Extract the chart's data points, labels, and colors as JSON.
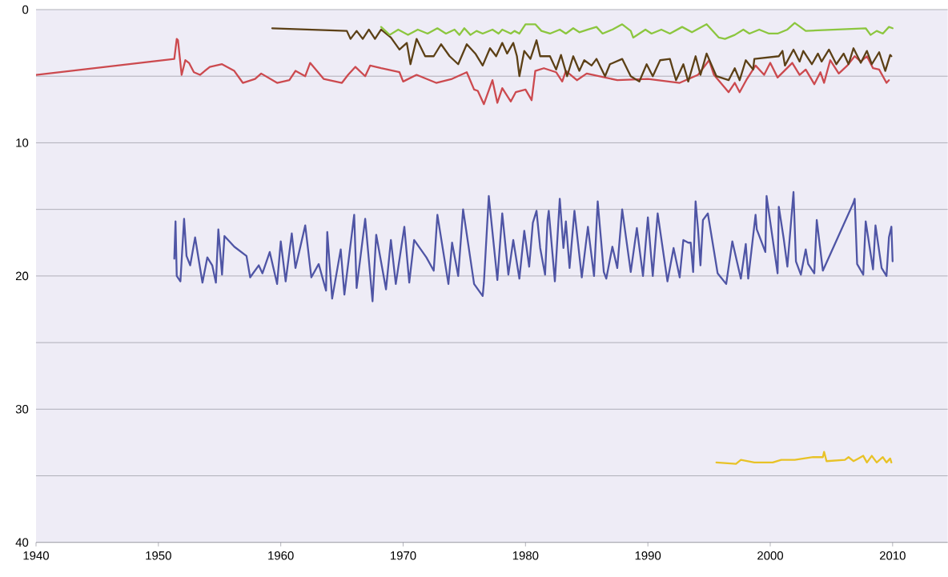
{
  "chart_data": {
    "type": "line",
    "xlim": [
      1940,
      2014.5
    ],
    "ylim": [
      40,
      0
    ],
    "xticks": [
      1940,
      1950,
      1960,
      1970,
      1980,
      1990,
      2000,
      2010
    ],
    "yticks": [
      0,
      {
        "value": 5,
        "label": null
      },
      10,
      {
        "value": 15,
        "label": null
      },
      20,
      {
        "value": 25,
        "label": null
      },
      30,
      {
        "value": 35,
        "label": null
      },
      40
    ],
    "grid": "y",
    "series": [
      {
        "color": "#cc4a4f",
        "x": [
          1940,
          1951.3,
          1951.5,
          1951.6,
          1951.9,
          1952.2,
          1952.5,
          1952.9,
          1953.4,
          1954.2,
          1955.2,
          1956.2,
          1956.9,
          1957.9,
          1958.4,
          1959.7,
          1960.7,
          1961.2,
          1962.0,
          1962.4,
          1963.5,
          1965.0,
          1965.5,
          1966.1,
          1966.9,
          1967.3,
          1968.2,
          1969.7,
          1970.0,
          1971.1,
          1972.7,
          1974.0,
          1975.2,
          1975.8,
          1976.1,
          1976.6,
          1977.3,
          1977.7,
          1978.1,
          1978.8,
          1979.2,
          1980.0,
          1980.5,
          1980.8,
          1981.5,
          1982.5,
          1983.0,
          1983.3,
          1984.2,
          1985.0,
          1987.5,
          1990.0,
          1992.6,
          1994.1,
          1995.0,
          1995.4,
          1996.6,
          1997.1,
          1997.5,
          1998.1,
          1998.8,
          1999.5,
          2000.0,
          2000.6,
          2001.8,
          2002.4,
          2002.9,
          2003.6,
          2004.1,
          2004.4,
          2004.9,
          2005.6,
          2006.3,
          2006.9,
          2007.4,
          2007.9,
          2008.4,
          2008.9,
          2009.5,
          2009.7
        ],
        "values": [
          4.9,
          3.7,
          2.2,
          2.3,
          4.9,
          3.8,
          4.0,
          4.7,
          4.9,
          4.3,
          4.1,
          4.6,
          5.5,
          5.2,
          4.8,
          5.5,
          5.3,
          4.6,
          5.0,
          4.0,
          5.2,
          5.5,
          4.9,
          4.3,
          5.0,
          4.2,
          4.4,
          4.7,
          5.4,
          4.9,
          5.5,
          5.2,
          4.7,
          6.0,
          6.1,
          7.1,
          5.3,
          7.0,
          5.9,
          6.9,
          6.2,
          6.0,
          6.8,
          4.6,
          4.4,
          4.7,
          5.4,
          4.6,
          5.3,
          4.8,
          5.3,
          5.2,
          5.5,
          4.9,
          3.8,
          4.9,
          6.2,
          5.5,
          6.2,
          5.2,
          4.2,
          4.9,
          4.0,
          5.1,
          4.0,
          4.9,
          4.5,
          5.6,
          4.7,
          5.5,
          3.8,
          4.8,
          4.2,
          3.5,
          3.9,
          3.5,
          4.4,
          4.5,
          5.5,
          5.3
        ]
      },
      {
        "color": "#5c4016",
        "x": [
          1959.3,
          1965.4,
          1965.7,
          1966.2,
          1966.7,
          1967.2,
          1967.7,
          1968.2,
          1969.0,
          1969.7,
          1970.3,
          1970.6,
          1971.1,
          1971.8,
          1972.5,
          1973.1,
          1973.8,
          1974.5,
          1975.2,
          1975.9,
          1976.5,
          1977.1,
          1977.6,
          1978.1,
          1978.5,
          1979.0,
          1979.3,
          1979.5,
          1979.9,
          1980.4,
          1980.9,
          1981.2,
          1982.0,
          1982.5,
          1982.9,
          1983.4,
          1983.9,
          1984.4,
          1984.8,
          1985.4,
          1985.8,
          1986.5,
          1986.9,
          1987.9,
          1988.6,
          1989.3,
          1989.9,
          1990.4,
          1991.0,
          1991.8,
          1992.3,
          1992.9,
          1993.3,
          1993.9,
          1994.3,
          1994.8,
          1995.6,
          1996.6,
          1997.1,
          1997.5,
          1998.0,
          1998.6,
          1998.7,
          2000.7,
          2001.0,
          2001.2,
          2001.9,
          2002.4,
          2002.7,
          2003.4,
          2003.9,
          2004.2,
          2004.8,
          2005.4,
          2006.0,
          2006.4,
          2006.8,
          2007.4,
          2007.9,
          2008.3,
          2008.9,
          2009.4,
          2009.8,
          2009.9
        ],
        "values": [
          1.4,
          1.6,
          2.2,
          1.6,
          2.2,
          1.5,
          2.2,
          1.5,
          2.1,
          3.0,
          2.5,
          4.1,
          2.2,
          3.5,
          3.5,
          2.6,
          3.5,
          4.1,
          2.6,
          3.3,
          4.2,
          2.9,
          3.5,
          2.5,
          3.3,
          2.5,
          3.5,
          5.0,
          3.1,
          3.7,
          2.3,
          3.5,
          3.5,
          4.5,
          3.4,
          5.0,
          3.5,
          4.6,
          3.8,
          4.2,
          3.7,
          5.0,
          4.1,
          3.7,
          5.0,
          5.4,
          4.1,
          5.0,
          3.8,
          3.7,
          5.3,
          4.1,
          5.4,
          3.5,
          4.9,
          3.3,
          5.0,
          5.3,
          4.4,
          5.3,
          3.8,
          4.5,
          3.7,
          3.5,
          3.1,
          4.2,
          3.0,
          3.9,
          3.1,
          4.1,
          3.3,
          3.9,
          3.0,
          4.1,
          3.3,
          4.1,
          2.9,
          4.0,
          3.1,
          4.1,
          3.2,
          4.6,
          3.4,
          3.5
        ]
      },
      {
        "color": "#8cc63f",
        "x": [
          1968.2,
          1968.9,
          1969.6,
          1970.4,
          1971.2,
          1972.0,
          1972.8,
          1973.5,
          1974.2,
          1974.6,
          1975.0,
          1975.5,
          1976.0,
          1976.5,
          1977.3,
          1977.8,
          1978.1,
          1978.8,
          1979.1,
          1979.5,
          1980.0,
          1980.8,
          1981.3,
          1982.0,
          1982.8,
          1983.3,
          1983.9,
          1984.4,
          1985.1,
          1985.8,
          1986.3,
          1987.1,
          1987.9,
          1988.6,
          1988.8,
          1989.8,
          1990.3,
          1991.1,
          1991.8,
          1992.8,
          1993.6,
          1994.8,
          1995.8,
          1996.3,
          1997.1,
          1997.8,
          1998.3,
          1999.1,
          1999.9,
          2000.6,
          2001.4,
          2002.0,
          2002.9,
          2007.8,
          2008.2,
          2008.7,
          2009.2,
          2009.7,
          2010.0
        ],
        "values": [
          1.3,
          1.9,
          1.5,
          1.9,
          1.5,
          1.8,
          1.4,
          1.8,
          1.5,
          1.9,
          1.4,
          1.9,
          1.6,
          1.8,
          1.5,
          1.8,
          1.5,
          1.8,
          1.6,
          1.8,
          1.1,
          1.1,
          1.6,
          1.8,
          1.5,
          1.8,
          1.4,
          1.7,
          1.5,
          1.3,
          1.8,
          1.5,
          1.1,
          1.6,
          2.1,
          1.5,
          1.8,
          1.5,
          1.8,
          1.3,
          1.7,
          1.1,
          2.1,
          2.2,
          1.9,
          1.5,
          1.8,
          1.5,
          1.8,
          1.8,
          1.5,
          1.0,
          1.6,
          1.4,
          1.9,
          1.6,
          1.8,
          1.3,
          1.4
        ]
      },
      {
        "color": "#4f55a5",
        "x": [
          1951.3,
          1951.4,
          1951.5,
          1951.8,
          1952.1,
          1952.3,
          1952.6,
          1953.0,
          1953.6,
          1954.0,
          1954.4,
          1954.7,
          1954.9,
          1955.2,
          1955.4,
          1956.2,
          1957.2,
          1957.5,
          1958.2,
          1958.5,
          1959.1,
          1959.7,
          1960.0,
          1960.4,
          1960.9,
          1961.2,
          1962.0,
          1962.5,
          1963.1,
          1963.7,
          1963.8,
          1964.2,
          1964.9,
          1965.2,
          1966.0,
          1966.2,
          1966.9,
          1967.5,
          1967.8,
          1968.6,
          1969.0,
          1969.4,
          1970.1,
          1970.5,
          1970.9,
          1971.9,
          1972.5,
          1972.8,
          1973.7,
          1974.0,
          1974.5,
          1974.9,
          1975.8,
          1976.5,
          1976.6,
          1977.0,
          1977.7,
          1978.1,
          1978.6,
          1979.0,
          1979.5,
          1979.9,
          1980.3,
          1980.6,
          1980.9,
          1981.2,
          1981.6,
          1981.8,
          1981.9,
          1982.4,
          1982.8,
          1983.1,
          1983.3,
          1983.6,
          1984.0,
          1984.6,
          1985.1,
          1985.6,
          1985.9,
          1986.4,
          1986.6,
          1987.1,
          1987.5,
          1987.9,
          1988.6,
          1989.1,
          1989.6,
          1990.0,
          1990.4,
          1990.8,
          1991.6,
          1992.1,
          1992.6,
          1992.9,
          1993.3,
          1993.5,
          1993.7,
          1993.9,
          1994.1,
          1994.3,
          1994.5,
          1994.9,
          1995.7,
          1996.4,
          1996.9,
          1997.6,
          1998.0,
          1998.2,
          1998.8,
          1998.9,
          1999.6,
          1999.7,
          2000.6,
          2000.7,
          2001.1,
          2001.4,
          2001.9,
          2002.1,
          2002.5,
          2002.9,
          2003.1,
          2003.6,
          2003.8,
          2004.3,
          2006.8,
          2006.9,
          2007.1,
          2007.6,
          2007.8,
          2008.4,
          2008.6,
          2009.1,
          2009.5,
          2009.7,
          2009.9,
          2010.0
        ],
        "values": [
          18.7,
          15.9,
          20.0,
          20.4,
          15.7,
          18.5,
          19.2,
          17.1,
          20.5,
          18.6,
          19.2,
          20.5,
          16.5,
          19.9,
          17.0,
          17.8,
          18.5,
          20.1,
          19.2,
          19.8,
          18.2,
          20.6,
          17.4,
          20.4,
          16.8,
          19.4,
          16.2,
          20.1,
          19.1,
          21.1,
          16.7,
          21.7,
          18.0,
          21.4,
          15.4,
          20.9,
          15.7,
          21.9,
          16.9,
          21.0,
          17.3,
          20.6,
          16.3,
          20.5,
          17.3,
          18.6,
          19.6,
          15.4,
          20.6,
          17.5,
          20.0,
          15.0,
          20.6,
          21.5,
          20.5,
          14.0,
          20.3,
          15.3,
          19.9,
          17.3,
          20.2,
          16.6,
          19.3,
          16.0,
          15.1,
          17.9,
          19.9,
          15.8,
          15.1,
          20.4,
          14.2,
          17.9,
          15.9,
          19.4,
          15.1,
          20.1,
          16.3,
          20.0,
          14.4,
          19.7,
          20.2,
          17.8,
          19.4,
          15.0,
          19.7,
          16.4,
          20.0,
          15.6,
          20.0,
          15.3,
          20.4,
          17.9,
          20.1,
          17.3,
          17.5,
          17.5,
          19.7,
          14.4,
          16.5,
          19.2,
          15.8,
          15.3,
          19.8,
          20.6,
          17.4,
          20.2,
          17.6,
          20.2,
          15.4,
          16.5,
          18.2,
          14.0,
          19.8,
          14.8,
          17.2,
          19.3,
          13.7,
          18.9,
          19.9,
          18.0,
          19.1,
          19.8,
          15.8,
          19.6,
          14.5,
          14.2,
          19.1,
          19.9,
          15.9,
          19.5,
          16.2,
          19.4,
          20.0,
          17.1,
          16.3,
          18.9
        ]
      },
      {
        "color": "#e8c227",
        "x": [
          1995.6,
          1997.2,
          1997.6,
          1998.7,
          2000.2,
          2000.9,
          2002.0,
          2003.5,
          2004.3,
          2004.4,
          2004.6,
          2006.1,
          2006.4,
          2006.8,
          2007.2,
          2007.6,
          2007.9,
          2008.3,
          2008.7,
          2009.2,
          2009.5,
          2009.8,
          2009.9
        ],
        "values": [
          34.0,
          34.1,
          33.8,
          34.0,
          34.0,
          33.8,
          33.8,
          33.6,
          33.6,
          33.2,
          33.9,
          33.8,
          33.6,
          33.9,
          33.7,
          33.5,
          34.0,
          33.5,
          34.0,
          33.6,
          34.0,
          33.7,
          34.0
        ]
      }
    ]
  }
}
